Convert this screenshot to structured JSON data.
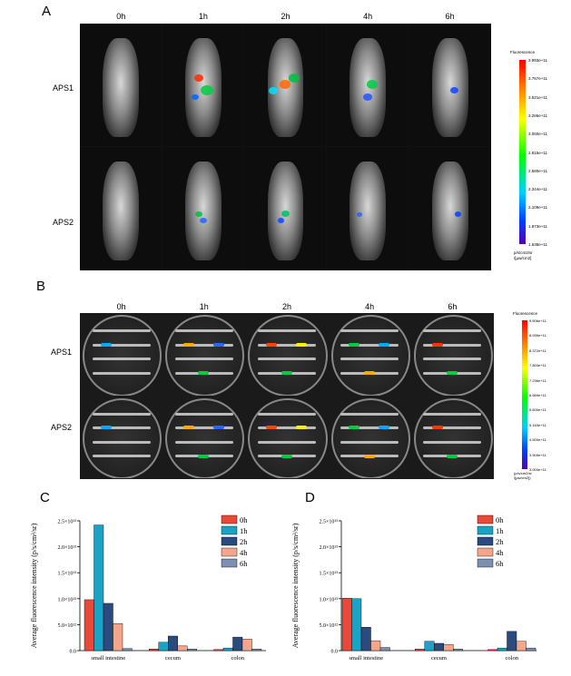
{
  "panel_a": {
    "label": "A",
    "columns": [
      "0h",
      "1h",
      "2h",
      "4h",
      "6h"
    ],
    "rows": [
      "APS1",
      "APS2"
    ],
    "colorbar": {
      "title": "Fluorescence",
      "ticks": [
        "3.993e+11",
        "3.757e+11",
        "3.521e+11",
        "3.286e+11",
        "3.050e+11",
        "2.815e+11",
        "2.580e+11",
        "2.344e+11",
        "2.109e+11",
        "1.873e+11",
        "1.638e+11"
      ],
      "unit_lines": [
        "p/s/cm2/sr",
        "/[µw/cm2]"
      ],
      "colors": [
        "#ff0000",
        "#ffff00",
        "#00ff00",
        "#00cfff",
        "#0040ff",
        "#5500aa"
      ]
    }
  },
  "panel_b": {
    "label": "B",
    "columns": [
      "0h",
      "1h",
      "2h",
      "4h",
      "6h"
    ],
    "rows": [
      "APS1",
      "APS2"
    ],
    "colorbar": {
      "title": "Fluorescence",
      "ticks": [
        "9.506e+11",
        "8.939e+11",
        "8.372e+11",
        "7.803e+11",
        "7.236e+11",
        "6.669e+11",
        "5.600e+11",
        "5.163e+11",
        "4.500e+11",
        "3.909e+11",
        "3.003e+11"
      ],
      "unit_lines": [
        "(p/s/cm2/sr",
        "/[µw/cm2])"
      ]
    }
  },
  "panel_c": {
    "label": "C"
  },
  "panel_d": {
    "label": "D"
  },
  "chart_data": [
    {
      "type": "bar",
      "panel": "C",
      "title": "",
      "xlabel": "",
      "ylabel": "Average fluorescence intensity (p/s/cm²/sr)",
      "ylim": [
        0,
        25000000000000.0
      ],
      "yticks": [
        0,
        5000000000000.0,
        10000000000000.0,
        15000000000000.0,
        20000000000000.0,
        25000000000000.0
      ],
      "ytick_labels": [
        "0.0",
        "5.0×10¹²",
        "1.0×10¹³",
        "1.5×10¹³",
        "2.0×10¹³",
        "2.5×10¹³"
      ],
      "categories": [
        "small intestine",
        "cecum",
        "colon"
      ],
      "legend_position": "top-right",
      "series": [
        {
          "name": "0h",
          "color": "#e8493a",
          "values": [
            9800000000000.0,
            300000000000.0,
            200000000000.0
          ]
        },
        {
          "name": "1h",
          "color": "#1ba3c6",
          "values": [
            24200000000000.0,
            1600000000000.0,
            500000000000.0
          ]
        },
        {
          "name": "2h",
          "color": "#2b4a7e",
          "values": [
            9100000000000.0,
            2800000000000.0,
            2600000000000.0
          ]
        },
        {
          "name": "4h",
          "color": "#f4a58a",
          "values": [
            5200000000000.0,
            900000000000.0,
            2200000000000.0
          ]
        },
        {
          "name": "6h",
          "color": "#7d8fb3",
          "values": [
            400000000000.0,
            300000000000.0,
            300000000000.0
          ]
        }
      ]
    },
    {
      "type": "bar",
      "panel": "D",
      "title": "",
      "xlabel": "",
      "ylabel": "Average fluorescence intensity (p/s/cm²/sr)",
      "ylim": [
        0,
        25000000000000.0
      ],
      "yticks": [
        0,
        5000000000000.0,
        10000000000000.0,
        15000000000000.0,
        20000000000000.0,
        25000000000000.0
      ],
      "ytick_labels": [
        "0.0",
        "5.0×10¹²",
        "1.0×10¹³",
        "1.5×10¹³",
        "2.0×10¹³",
        "2.5×10¹³"
      ],
      "categories": [
        "small intestine",
        "cecum",
        "colon"
      ],
      "legend_position": "top-right",
      "series": [
        {
          "name": "0h",
          "color": "#e8493a",
          "values": [
            10100000000000.0,
            300000000000.0,
            200000000000.0
          ]
        },
        {
          "name": "1h",
          "color": "#1ba3c6",
          "values": [
            10000000000000.0,
            1800000000000.0,
            500000000000.0
          ]
        },
        {
          "name": "2h",
          "color": "#2b4a7e",
          "values": [
            4500000000000.0,
            1400000000000.0,
            3700000000000.0
          ]
        },
        {
          "name": "4h",
          "color": "#f4a58a",
          "values": [
            1900000000000.0,
            1200000000000.0,
            1800000000000.0
          ]
        },
        {
          "name": "6h",
          "color": "#7d8fb3",
          "values": [
            600000000000.0,
            300000000000.0,
            500000000000.0
          ]
        }
      ]
    }
  ]
}
